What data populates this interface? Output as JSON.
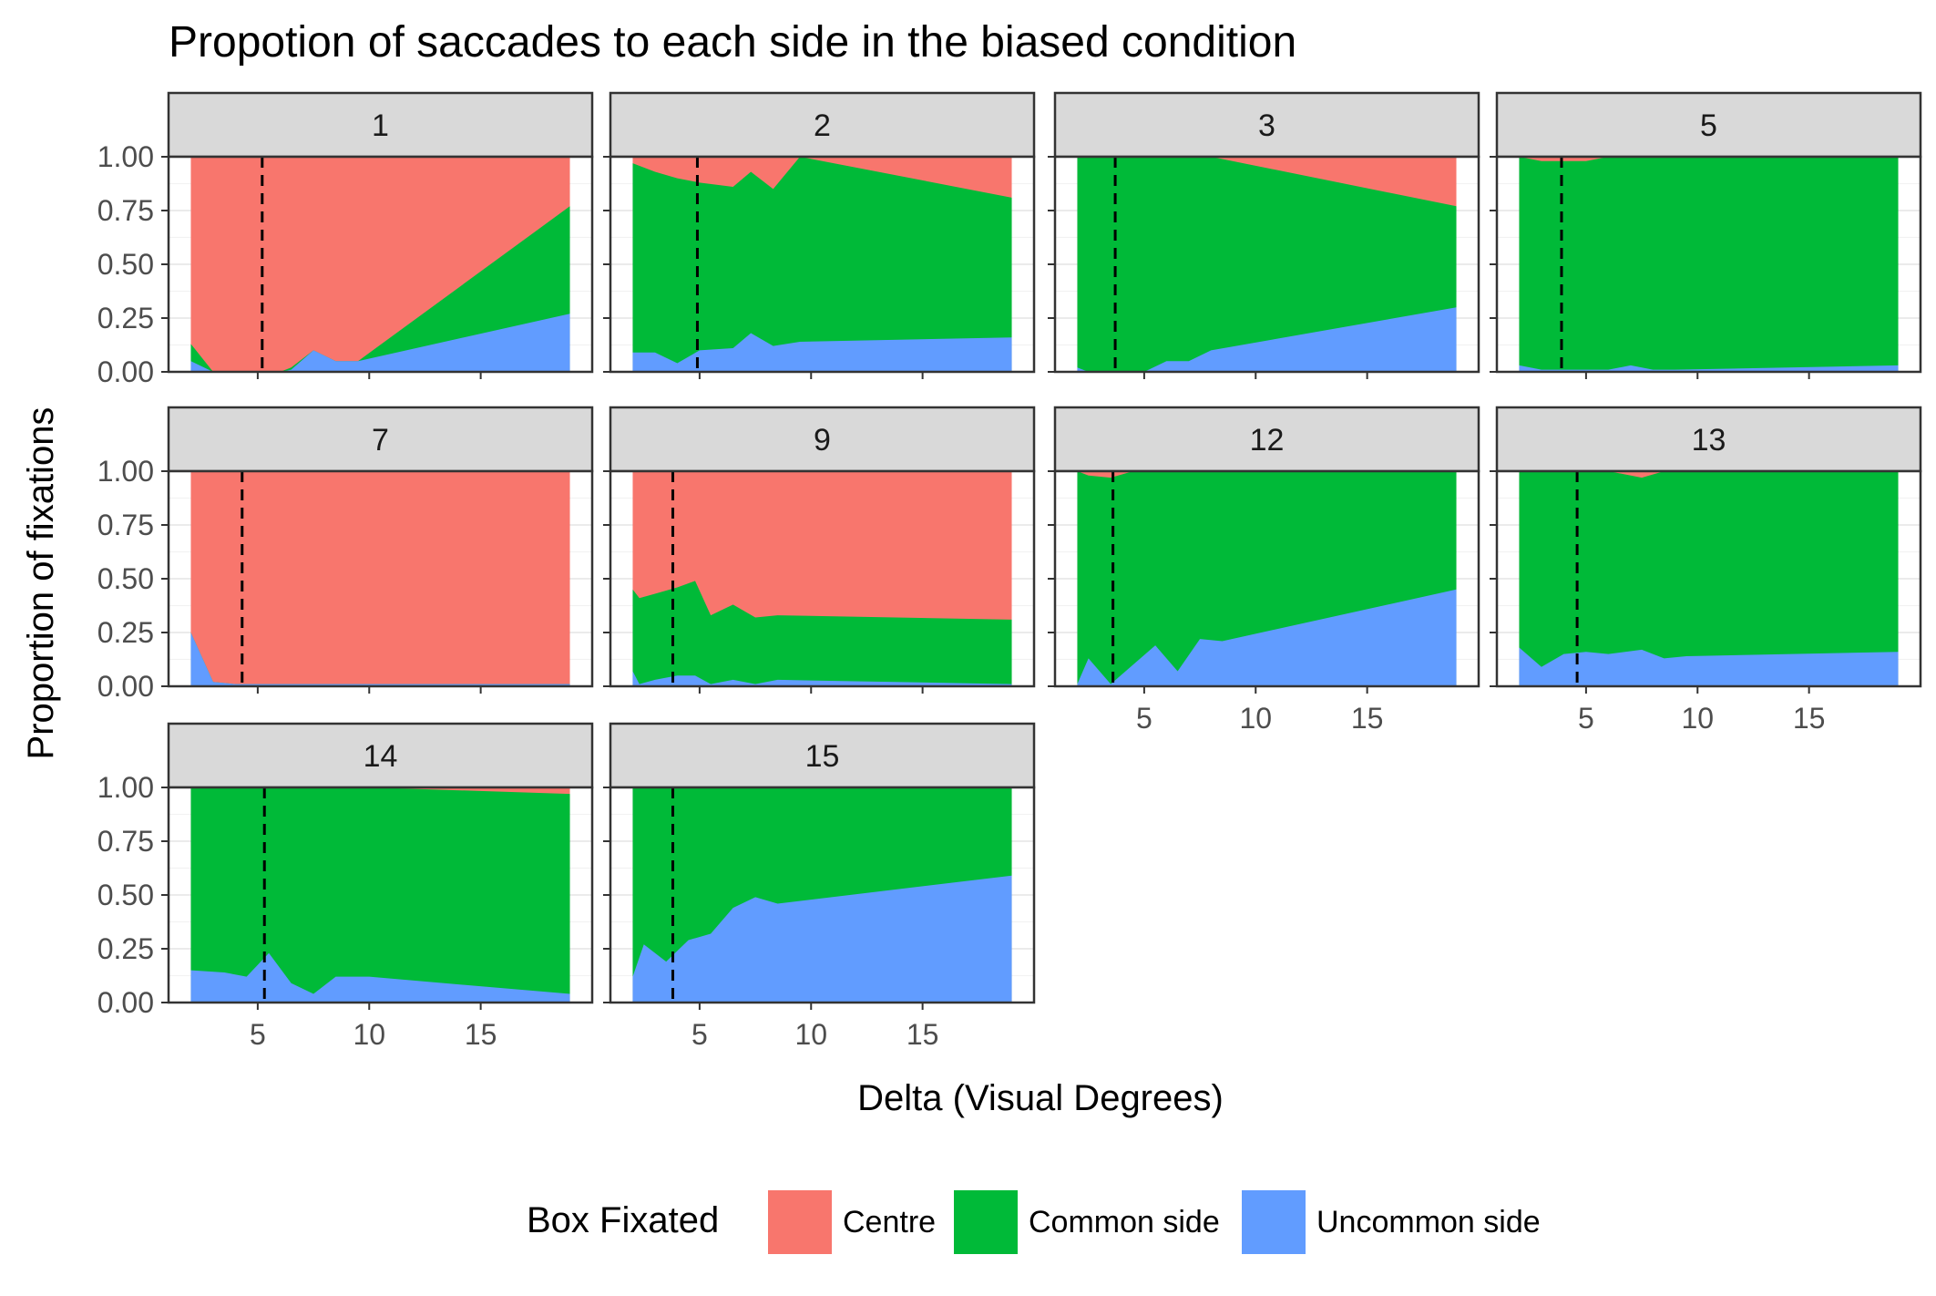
{
  "chart_data": {
    "type": "area",
    "title": "Propotion of saccades to each side in the biased condition",
    "xlabel": "Delta (Visual Degrees)",
    "ylabel": "Proportion of fixations",
    "xlim": [
      1,
      20
    ],
    "ylim": [
      0,
      1
    ],
    "x_ticks": [
      "5",
      "10",
      "15"
    ],
    "y_ticks": [
      "0.00",
      "0.25",
      "0.50",
      "0.75",
      "1.00"
    ],
    "grid": true,
    "stacked": true,
    "legend": {
      "title": "Box Fixated",
      "position": "bottom",
      "items": [
        {
          "name": "Centre",
          "color": "#F8766D"
        },
        {
          "name": "Common side",
          "color": "#00BA38"
        },
        {
          "name": "Uncommon side",
          "color": "#619CFF"
        }
      ]
    },
    "series_order_bottom_to_top": [
      "Uncommon side",
      "Common side",
      "Centre"
    ],
    "panels": [
      {
        "label": "1",
        "threshold": 5.2,
        "x": [
          2,
          3,
          4,
          5,
          6,
          6.5,
          7.5,
          8.5,
          9.5,
          19
        ],
        "uncommon": [
          0.05,
          0.0,
          0.0,
          0.0,
          0.0,
          0.01,
          0.1,
          0.05,
          0.05,
          0.27
        ],
        "uncommon_plus_common": [
          0.13,
          0.0,
          0.0,
          0.0,
          0.0,
          0.02,
          0.1,
          0.05,
          0.05,
          0.77
        ]
      },
      {
        "label": "2",
        "threshold": 4.9,
        "x": [
          2,
          3,
          4,
          5,
          6.5,
          7.3,
          8.3,
          9.5,
          19
        ],
        "uncommon": [
          0.09,
          0.09,
          0.04,
          0.1,
          0.11,
          0.18,
          0.12,
          0.14,
          0.16
        ],
        "uncommon_plus_common": [
          0.97,
          0.93,
          0.9,
          0.88,
          0.86,
          0.93,
          0.85,
          1.0,
          0.81
        ]
      },
      {
        "label": "3",
        "threshold": 3.7,
        "x": [
          2,
          2.5,
          3,
          4,
          5,
          6,
          7,
          8,
          19
        ],
        "uncommon": [
          0.02,
          0.0,
          0.0,
          0.0,
          0.0,
          0.05,
          0.05,
          0.1,
          0.3
        ],
        "uncommon_plus_common": [
          1.0,
          1.0,
          1.0,
          1.0,
          1.0,
          1.0,
          1.0,
          1.0,
          0.77
        ]
      },
      {
        "label": "5",
        "threshold": 3.9,
        "x": [
          2,
          3,
          4,
          5,
          6,
          7,
          8,
          9,
          19
        ],
        "uncommon": [
          0.03,
          0.01,
          0.01,
          0.01,
          0.01,
          0.03,
          0.01,
          0.01,
          0.03
        ],
        "uncommon_plus_common": [
          1.0,
          0.98,
          0.98,
          0.98,
          1.0,
          1.0,
          1.0,
          1.0,
          1.0
        ]
      },
      {
        "label": "7",
        "threshold": 4.3,
        "x": [
          2,
          3,
          4,
          5,
          6,
          19
        ],
        "uncommon": [
          0.25,
          0.02,
          0.01,
          0.01,
          0.01,
          0.01
        ],
        "uncommon_plus_common": [
          0.25,
          0.02,
          0.01,
          0.01,
          0.01,
          0.01
        ]
      },
      {
        "label": "9",
        "threshold": 3.8,
        "x": [
          2,
          2.3,
          3,
          4,
          4.8,
          5.5,
          6.5,
          7.5,
          8.5,
          19
        ],
        "uncommon": [
          0.07,
          0.01,
          0.03,
          0.05,
          0.05,
          0.01,
          0.03,
          0.01,
          0.03,
          0.01
        ],
        "uncommon_plus_common": [
          0.45,
          0.41,
          0.43,
          0.46,
          0.49,
          0.33,
          0.38,
          0.32,
          0.33,
          0.31
        ]
      },
      {
        "label": "12",
        "threshold": 3.6,
        "x": [
          2,
          2.5,
          3.5,
          4.5,
          5.5,
          6.5,
          7.5,
          8.5,
          19
        ],
        "uncommon": [
          0.01,
          0.13,
          0.01,
          0.1,
          0.19,
          0.07,
          0.22,
          0.21,
          0.45
        ],
        "uncommon_plus_common": [
          1.0,
          0.98,
          0.97,
          1.0,
          1.0,
          1.0,
          1.0,
          1.0,
          1.0
        ]
      },
      {
        "label": "13",
        "threshold": 4.6,
        "x": [
          2,
          3,
          4,
          5,
          6,
          7.5,
          8.5,
          9.5,
          19
        ],
        "uncommon": [
          0.18,
          0.09,
          0.15,
          0.16,
          0.15,
          0.17,
          0.13,
          0.14,
          0.16
        ],
        "uncommon_plus_common": [
          1.0,
          1.0,
          1.0,
          1.0,
          1.0,
          0.97,
          1.0,
          1.0,
          1.0
        ]
      },
      {
        "label": "14",
        "threshold": 5.3,
        "x": [
          2,
          3.5,
          4.5,
          5.5,
          6.5,
          7.5,
          8.5,
          10,
          19
        ],
        "uncommon": [
          0.15,
          0.14,
          0.12,
          0.23,
          0.09,
          0.04,
          0.12,
          0.12,
          0.04
        ],
        "uncommon_plus_common": [
          1.0,
          1.0,
          1.0,
          1.0,
          1.0,
          1.0,
          1.0,
          1.0,
          0.97
        ]
      },
      {
        "label": "15",
        "threshold": 3.8,
        "x": [
          2,
          2.5,
          3.5,
          4.5,
          5.5,
          6.5,
          7.5,
          8.5,
          19
        ],
        "uncommon": [
          0.12,
          0.27,
          0.19,
          0.29,
          0.32,
          0.44,
          0.49,
          0.46,
          0.59
        ],
        "uncommon_plus_common": [
          1.0,
          1.0,
          1.0,
          1.0,
          1.0,
          1.0,
          1.0,
          1.0,
          1.0
        ]
      }
    ]
  }
}
